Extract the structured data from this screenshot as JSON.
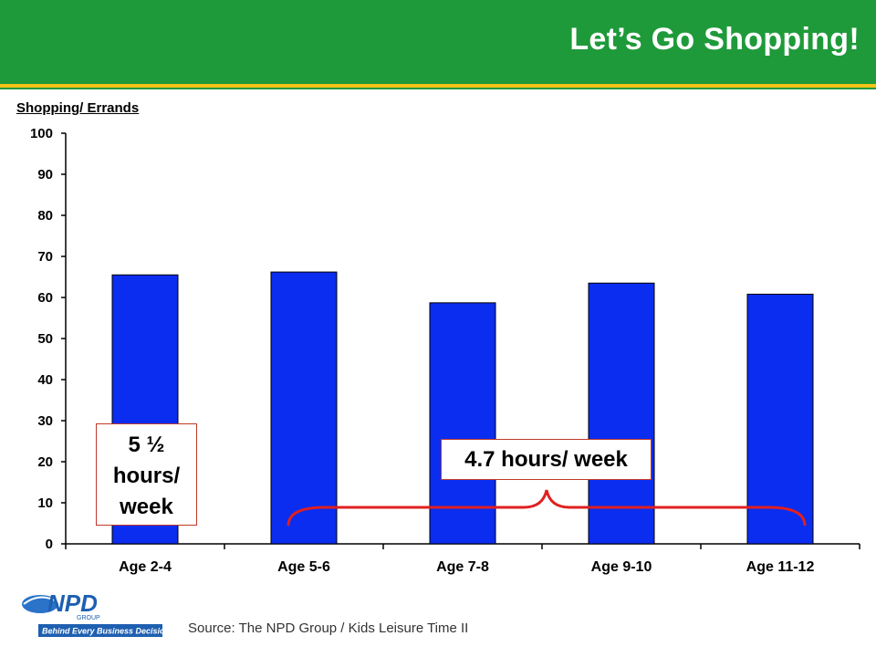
{
  "header": {
    "title": "Let’s Go Shopping!"
  },
  "colors": {
    "header_green": "#1f9a3a",
    "accent_yellow": "#f2c318",
    "bar_blue": "#0a2df0",
    "brace_red": "#e02020"
  },
  "chart_data": {
    "type": "bar",
    "title": "Shopping/ Errands",
    "categories": [
      "Age 2-4",
      "Age 5-6",
      "Age 7-8",
      "Age 9-10",
      "Age 11-12"
    ],
    "values": [
      65.5,
      66.2,
      58.7,
      63.5,
      60.8
    ],
    "ylim": [
      0,
      100
    ],
    "yticks": [
      0,
      10,
      20,
      30,
      40,
      50,
      60,
      70,
      80,
      90,
      100
    ],
    "grid": false,
    "annotations": [
      {
        "text": "5 ½ hours/ week",
        "category": "Age 2-4"
      },
      {
        "text": "4.7 hours/ week",
        "categories": [
          "Age 5-6",
          "Age 7-8",
          "Age 9-10",
          "Age 11-12"
        ]
      }
    ]
  },
  "callouts": {
    "left_line1": "5 ½",
    "left_line2": "hours/",
    "left_line3": "week",
    "right": "4.7 hours/ week"
  },
  "footer": {
    "source": "Source: The NPD Group / Kids Leisure Time II",
    "logo_text": "NPD",
    "logo_group": "GROUP",
    "logo_tagline": "Behind Every Business Decision"
  }
}
